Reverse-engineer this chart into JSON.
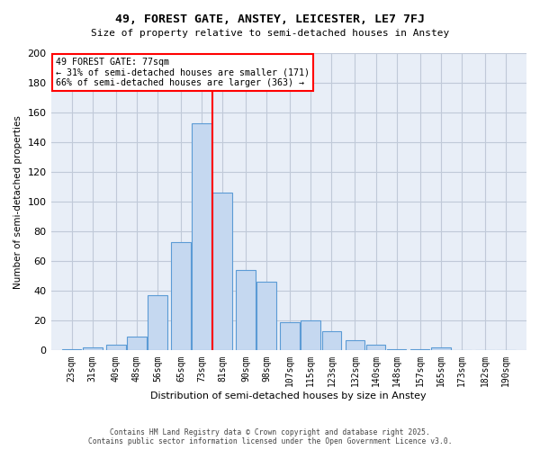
{
  "title1": "49, FOREST GATE, ANSTEY, LEICESTER, LE7 7FJ",
  "title2": "Size of property relative to semi-detached houses in Anstey",
  "xlabel": "Distribution of semi-detached houses by size in Anstey",
  "ylabel": "Number of semi-detached properties",
  "bin_labels": [
    "23sqm",
    "31sqm",
    "40sqm",
    "48sqm",
    "56sqm",
    "65sqm",
    "73sqm",
    "81sqm",
    "90sqm",
    "98sqm",
    "107sqm",
    "115sqm",
    "123sqm",
    "132sqm",
    "140sqm",
    "148sqm",
    "157sqm",
    "165sqm",
    "173sqm",
    "182sqm",
    "190sqm"
  ],
  "bin_centers": [
    23,
    31,
    40,
    48,
    56,
    65,
    73,
    81,
    90,
    98,
    107,
    115,
    123,
    132,
    140,
    148,
    157,
    165,
    173,
    182,
    190
  ],
  "counts": [
    1,
    2,
    4,
    9,
    37,
    73,
    153,
    106,
    54,
    46,
    19,
    20,
    13,
    7,
    4,
    1,
    1,
    2,
    0,
    0,
    0
  ],
  "bar_width": 7.5,
  "bar_facecolor": "#c5d8f0",
  "bar_edgecolor": "#5b9bd5",
  "vline_x": 77,
  "vline_color": "red",
  "annotation_title": "49 FOREST GATE: 77sqm",
  "annotation_line1": "← 31% of semi-detached houses are smaller (171)",
  "annotation_line2": "66% of semi-detached houses are larger (363) →",
  "annotation_box_color": "red",
  "ylim": [
    0,
    200
  ],
  "yticks": [
    0,
    20,
    40,
    60,
    80,
    100,
    120,
    140,
    160,
    180,
    200
  ],
  "xlim": [
    15,
    198
  ],
  "grid_color": "#c0c9d8",
  "background_color": "#e8eef7",
  "footer_line1": "Contains HM Land Registry data © Crown copyright and database right 2025.",
  "footer_line2": "Contains public sector information licensed under the Open Government Licence v3.0."
}
